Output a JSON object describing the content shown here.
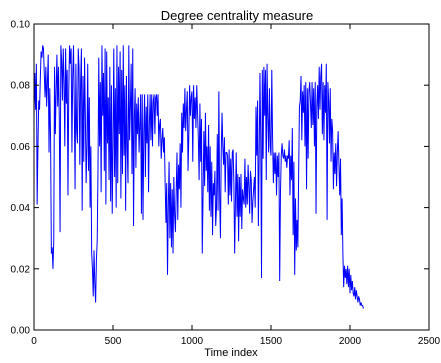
{
  "chart_data": {
    "type": "line",
    "title": "Degree centrality measure",
    "xlabel": "Time index",
    "ylabel": "",
    "xlim": [
      0,
      2500
    ],
    "ylim": [
      0.0,
      0.1
    ],
    "xticks": [
      0,
      500,
      1000,
      1500,
      2000,
      2500
    ],
    "xtick_labels": [
      "0",
      "500",
      "1000",
      "1500",
      "2000",
      "2500"
    ],
    "yticks": [
      0.0,
      0.02,
      0.04,
      0.06,
      0.08,
      0.1
    ],
    "ytick_labels": [
      "0.00",
      "0.02",
      "0.04",
      "0.06",
      "0.08",
      "0.10"
    ],
    "grid": false,
    "series": [
      {
        "color": "#0000ff",
        "x": [
          0,
          5,
          10,
          15,
          20,
          25,
          30,
          35,
          40,
          45,
          50,
          55,
          60,
          65,
          70,
          75,
          80,
          85,
          90,
          95,
          100,
          105,
          110,
          115,
          120,
          125,
          130,
          135,
          140,
          145,
          150,
          155,
          160,
          165,
          170,
          175,
          180,
          185,
          190,
          195,
          200,
          205,
          210,
          215,
          220,
          225,
          230,
          235,
          240,
          245,
          250,
          255,
          260,
          265,
          270,
          275,
          280,
          285,
          290,
          295,
          300,
          305,
          310,
          315,
          320,
          325,
          330,
          335,
          340,
          345,
          350,
          355,
          360,
          365,
          370,
          375,
          380,
          385,
          390,
          395,
          400,
          405,
          410,
          415,
          420,
          425,
          430,
          435,
          440,
          445,
          450,
          455,
          460,
          465,
          470,
          475,
          480,
          485,
          490,
          495,
          500,
          505,
          510,
          515,
          520,
          525,
          530,
          535,
          540,
          545,
          550,
          555,
          560,
          565,
          570,
          575,
          580,
          585,
          590,
          595,
          600,
          605,
          610,
          615,
          620,
          625,
          630,
          635,
          640,
          645,
          650,
          655,
          660,
          665,
          670,
          675,
          680,
          685,
          690,
          695,
          700,
          705,
          710,
          715,
          720,
          725,
          730,
          735,
          740,
          745,
          750,
          755,
          760,
          765,
          770,
          775,
          780,
          785,
          790,
          795,
          800,
          805,
          810,
          815,
          820,
          825,
          830,
          835,
          840,
          845,
          850,
          855,
          860,
          865,
          870,
          875,
          880,
          885,
          890,
          895,
          900,
          905,
          910,
          915,
          920,
          925,
          930,
          935,
          940,
          945,
          950,
          955,
          960,
          965,
          970,
          975,
          980,
          985,
          990,
          995,
          1000,
          1005,
          1010,
          1015,
          1020,
          1025,
          1030,
          1035,
          1040,
          1045,
          1050,
          1055,
          1060,
          1065,
          1070,
          1075,
          1080,
          1085,
          1090,
          1095,
          1100,
          1105,
          1110,
          1115,
          1120,
          1125,
          1130,
          1135,
          1140,
          1145,
          1150,
          1155,
          1160,
          1165,
          1170,
          1175,
          1180,
          1185,
          1190,
          1195,
          1200,
          1205,
          1210,
          1215,
          1220,
          1225,
          1230,
          1235,
          1240,
          1245,
          1250,
          1255,
          1260,
          1265,
          1270,
          1275,
          1280,
          1285,
          1290,
          1295,
          1300,
          1305,
          1310,
          1315,
          1320,
          1325,
          1330,
          1335,
          1340,
          1345,
          1350,
          1355,
          1360,
          1365,
          1370,
          1375,
          1380,
          1385,
          1390,
          1395,
          1400,
          1405,
          1410,
          1415,
          1420,
          1425,
          1430,
          1435,
          1440,
          1445,
          1450,
          1455,
          1460,
          1465,
          1470,
          1475,
          1480,
          1485,
          1490,
          1495,
          1500,
          1505,
          1510,
          1515,
          1520,
          1525,
          1530,
          1535,
          1540,
          1545,
          1550,
          1555,
          1560,
          1565,
          1570,
          1575,
          1580,
          1585,
          1590,
          1595,
          1600,
          1605,
          1610,
          1615,
          1620,
          1625,
          1630,
          1635,
          1640,
          1645,
          1650,
          1655,
          1660,
          1665,
          1670,
          1675,
          1680,
          1685,
          1690,
          1695,
          1700,
          1705,
          1710,
          1715,
          1720,
          1725,
          1730,
          1735,
          1740,
          1745,
          1750,
          1755,
          1760,
          1765,
          1770,
          1775,
          1780,
          1785,
          1790,
          1795,
          1800,
          1805,
          1810,
          1815,
          1820,
          1825,
          1830,
          1835,
          1840,
          1845,
          1850,
          1855,
          1860,
          1865,
          1870,
          1875,
          1880,
          1885,
          1890,
          1895,
          1900,
          1905,
          1910,
          1915,
          1920,
          1925,
          1930,
          1935,
          1940,
          1945,
          1950,
          1955,
          1960,
          1965,
          1970,
          1975,
          1980,
          1985,
          1990,
          1995,
          2000,
          2005,
          2010,
          2015,
          2020,
          2025,
          2030,
          2035,
          2040,
          2045,
          2050,
          2055,
          2060,
          2065,
          2070,
          2075,
          2080,
          2085
        ],
        "y": [
          0.07,
          0.084,
          0.072,
          0.087,
          0.041,
          0.06,
          0.075,
          0.072,
          0.082,
          0.091,
          0.089,
          0.093,
          0.092,
          0.084,
          0.076,
          0.086,
          0.073,
          0.081,
          0.09,
          0.058,
          0.079,
          0.062,
          0.025,
          0.027,
          0.02,
          0.029,
          0.086,
          0.064,
          0.078,
          0.09,
          0.073,
          0.086,
          0.069,
          0.032,
          0.093,
          0.088,
          0.075,
          0.092,
          0.081,
          0.06,
          0.092,
          0.074,
          0.085,
          0.044,
          0.078,
          0.093,
          0.087,
          0.092,
          0.058,
          0.083,
          0.093,
          0.074,
          0.046,
          0.087,
          0.065,
          0.061,
          0.092,
          0.086,
          0.054,
          0.081,
          0.092,
          0.039,
          0.083,
          0.055,
          0.089,
          0.07,
          0.048,
          0.06,
          0.087,
          0.052,
          0.076,
          0.04,
          0.06,
          0.025,
          0.02,
          0.011,
          0.026,
          0.015,
          0.009,
          0.023,
          0.029,
          0.052,
          0.089,
          0.06,
          0.081,
          0.045,
          0.093,
          0.07,
          0.084,
          0.052,
          0.092,
          0.041,
          0.091,
          0.061,
          0.076,
          0.049,
          0.086,
          0.042,
          0.08,
          0.038,
          0.061,
          0.092,
          0.05,
          0.079,
          0.04,
          0.093,
          0.048,
          0.086,
          0.064,
          0.091,
          0.043,
          0.085,
          0.051,
          0.093,
          0.057,
          0.08,
          0.039,
          0.083,
          0.06,
          0.048,
          0.093,
          0.062,
          0.073,
          0.087,
          0.051,
          0.092,
          0.034,
          0.069,
          0.079,
          0.053,
          0.074,
          0.064,
          0.076,
          0.058,
          0.067,
          0.077,
          0.038,
          0.077,
          0.036,
          0.065,
          0.077,
          0.05,
          0.073,
          0.061,
          0.077,
          0.045,
          0.067,
          0.077,
          0.062,
          0.077,
          0.06,
          0.075,
          0.077,
          0.064,
          0.076,
          0.077,
          0.07,
          0.077,
          0.06,
          0.067,
          0.069,
          0.056,
          0.062,
          0.066,
          0.058,
          0.063,
          0.048,
          0.035,
          0.048,
          0.018,
          0.04,
          0.055,
          0.03,
          0.048,
          0.027,
          0.046,
          0.025,
          0.05,
          0.038,
          0.032,
          0.045,
          0.058,
          0.036,
          0.054,
          0.046,
          0.061,
          0.04,
          0.071,
          0.058,
          0.074,
          0.066,
          0.079,
          0.065,
          0.072,
          0.078,
          0.052,
          0.064,
          0.08,
          0.07,
          0.076,
          0.078,
          0.055,
          0.08,
          0.069,
          0.076,
          0.066,
          0.08,
          0.071,
          0.063,
          0.049,
          0.074,
          0.055,
          0.069,
          0.025,
          0.044,
          0.065,
          0.047,
          0.071,
          0.052,
          0.06,
          0.045,
          0.067,
          0.039,
          0.06,
          0.037,
          0.055,
          0.031,
          0.048,
          0.044,
          0.052,
          0.034,
          0.04,
          0.064,
          0.039,
          0.078,
          0.044,
          0.03,
          0.058,
          0.071,
          0.06,
          0.054,
          0.063,
          0.045,
          0.058,
          0.058,
          0.057,
          0.041,
          0.059,
          0.044,
          0.056,
          0.042,
          0.058,
          0.059,
          0.048,
          0.025,
          0.042,
          0.058,
          0.037,
          0.051,
          0.029,
          0.05,
          0.037,
          0.051,
          0.033,
          0.046,
          0.043,
          0.041,
          0.056,
          0.04,
          0.05,
          0.041,
          0.054,
          0.047,
          0.038,
          0.052,
          0.049,
          0.035,
          0.042,
          0.046,
          0.05,
          0.04,
          0.073,
          0.057,
          0.075,
          0.034,
          0.056,
          0.084,
          0.063,
          0.017,
          0.085,
          0.056,
          0.086,
          0.07,
          0.085,
          0.049,
          0.087,
          0.07,
          0.058,
          0.079,
          0.06,
          0.057,
          0.085,
          0.063,
          0.048,
          0.058,
          0.051,
          0.058,
          0.044,
          0.057,
          0.05,
          0.058,
          0.016,
          0.045,
          0.057,
          0.061,
          0.057,
          0.056,
          0.059,
          0.055,
          0.057,
          0.053,
          0.057,
          0.056,
          0.062,
          0.044,
          0.057,
          0.049,
          0.066,
          0.031,
          0.055,
          0.018,
          0.043,
          0.026,
          0.036,
          0.027,
          0.051,
          0.073,
          0.075,
          0.083,
          0.062,
          0.078,
          0.071,
          0.08,
          0.06,
          0.081,
          0.046,
          0.079,
          0.056,
          0.078,
          0.081,
          0.074,
          0.066,
          0.081,
          0.067,
          0.079,
          0.06,
          0.081,
          0.038,
          0.073,
          0.08,
          0.069,
          0.086,
          0.072,
          0.083,
          0.087,
          0.064,
          0.081,
          0.062,
          0.08,
          0.071,
          0.087,
          0.036,
          0.081,
          0.075,
          0.061,
          0.079,
          0.055,
          0.069,
          0.065,
          0.046,
          0.058,
          0.051,
          0.061,
          0.047,
          0.058,
          0.065,
          0.054,
          0.044,
          0.056,
          0.031,
          0.043,
          0.025,
          0.014,
          0.021,
          0.017,
          0.02,
          0.015,
          0.021,
          0.014,
          0.02,
          0.012,
          0.018,
          0.013,
          0.016,
          0.012,
          0.011,
          0.014,
          0.01,
          0.013,
          0.011,
          0.009,
          0.011,
          0.01,
          0.008,
          0.009,
          0.008,
          0.008,
          0.007
        ]
      }
    ]
  }
}
